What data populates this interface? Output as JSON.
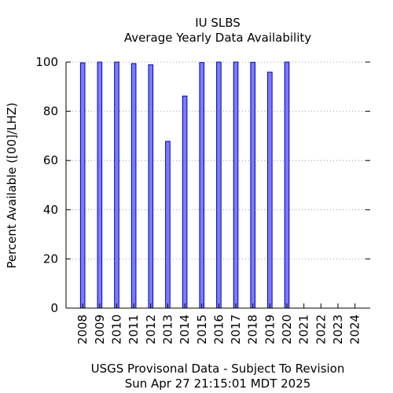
{
  "chart_data": {
    "type": "bar",
    "title": "IU SLBS",
    "subtitle": "Average Yearly Data Availability",
    "xlabel": "USGS Provisonal Data - Subject To Revision",
    "xlabel_line2": "Sun Apr 27 21:15:01 MDT 2025",
    "ylabel": "Percent Available ([00]/LHZ)",
    "ylim": [
      0,
      100
    ],
    "yticks": [
      0,
      20,
      40,
      60,
      80,
      100
    ],
    "grid": "horizontal dotted",
    "categories": [
      "2008",
      "2009",
      "2010",
      "2011",
      "2012",
      "2013",
      "2014",
      "2015",
      "2016",
      "2017",
      "2018",
      "2019",
      "2020",
      "2021",
      "2022",
      "2023",
      "2024"
    ],
    "values": [
      99.7,
      100,
      100,
      99.4,
      98.9,
      67.8,
      86.2,
      99.8,
      100,
      100,
      99.9,
      95.9,
      100,
      null,
      null,
      null,
      null
    ],
    "colors": {
      "bar_fill": "#7b7bff",
      "bar_stroke": "#0000b0",
      "grid": "#888888",
      "axis": "#000000"
    }
  }
}
